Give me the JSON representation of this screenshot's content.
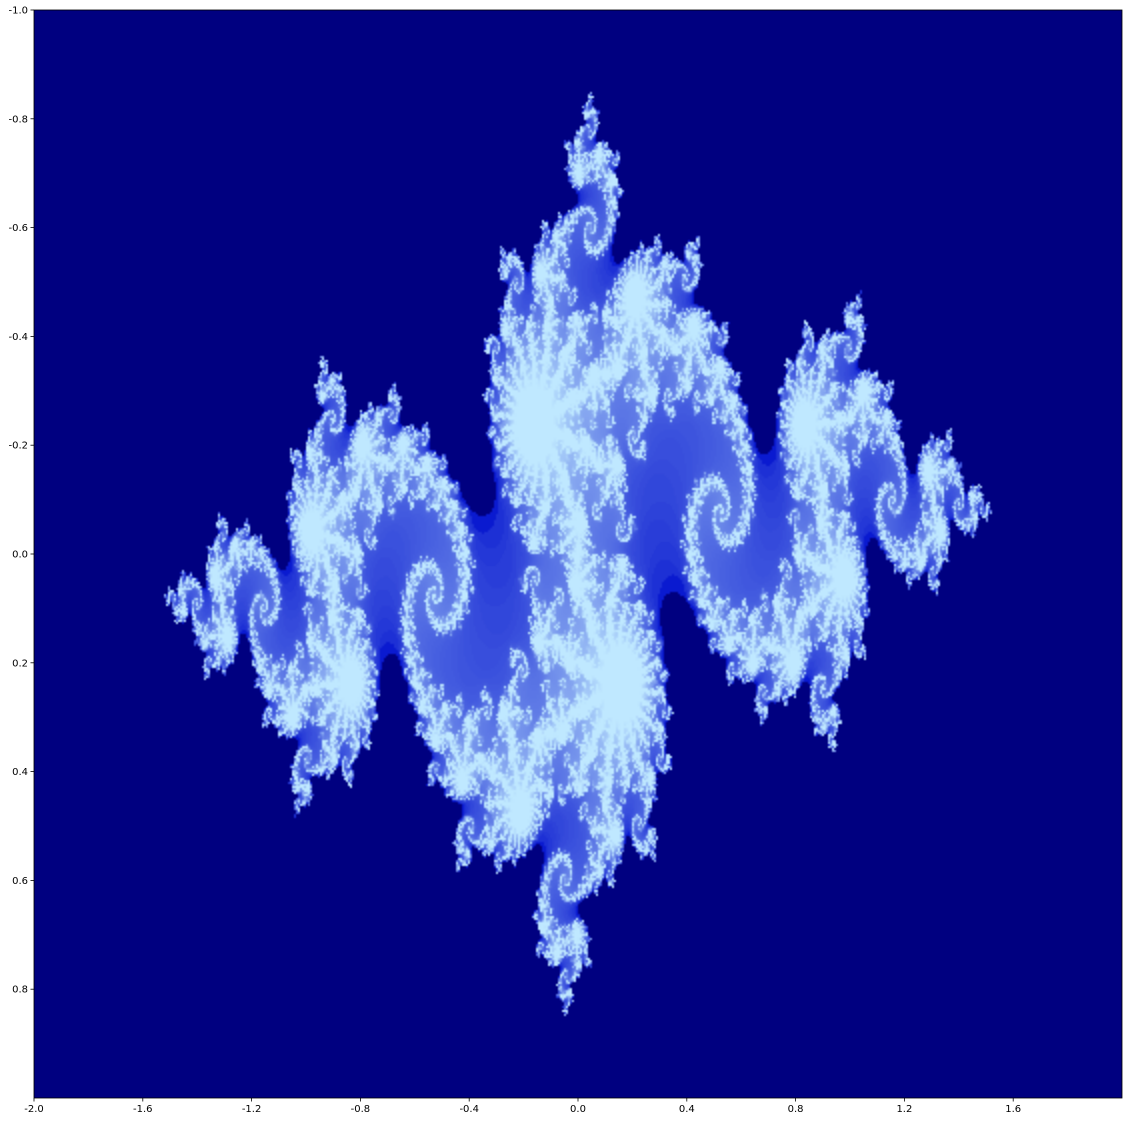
{
  "chart_data": {
    "type": "heatmap",
    "title": "",
    "xlabel": "",
    "ylabel": "",
    "xlim": [
      -2.0,
      2.0
    ],
    "ylim": [
      -1.0,
      1.0
    ],
    "y_inverted": true,
    "grid": false,
    "x_ticks": [
      -2.0,
      -1.6,
      -1.2,
      -0.8,
      -0.4,
      0.0,
      0.4,
      0.8,
      1.2,
      1.6
    ],
    "x_tick_labels": [
      "-2.0",
      "-1.6",
      "-1.2",
      "-0.8",
      "-0.4",
      "0.0",
      "0.4",
      "0.8",
      "1.2",
      "1.6"
    ],
    "y_ticks": [
      -1.0,
      -0.8,
      -0.6,
      -0.4,
      -0.2,
      0.0,
      0.2,
      0.4,
      0.6,
      0.8
    ],
    "y_tick_labels": [
      "-1.0",
      "-0.8",
      "-0.6",
      "-0.4",
      "-0.2",
      "0.0",
      "0.2",
      "0.4",
      "0.6",
      "0.8"
    ],
    "colors": {
      "background": "#000080",
      "fractal_low": "#0a1ad0",
      "fractal_high": "#bfe8ff"
    }
  }
}
